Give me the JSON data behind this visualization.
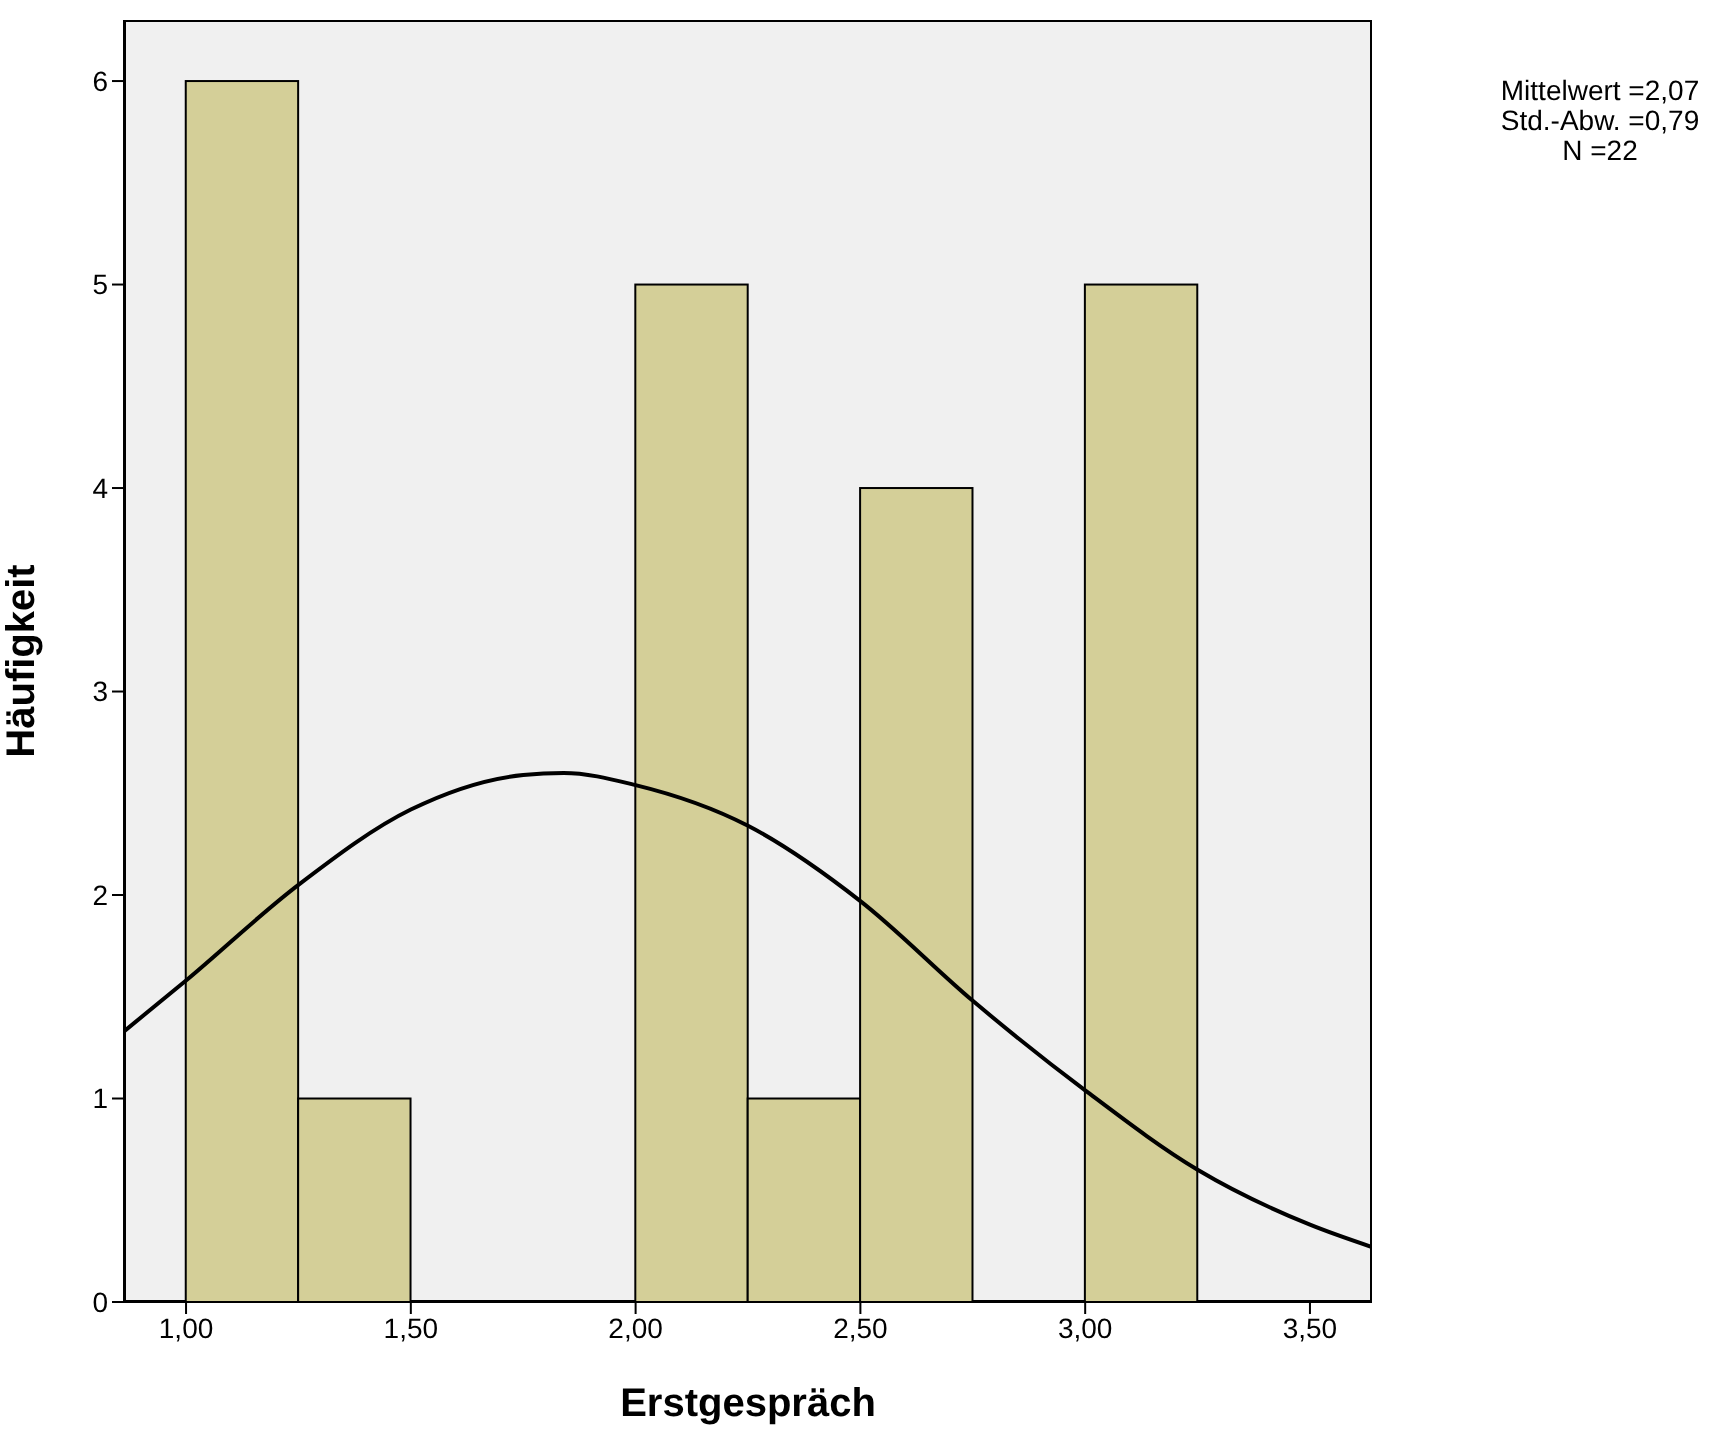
{
  "chart_data": {
    "type": "histogram",
    "xlabel": "Erstgespräch",
    "ylabel": "Häufigkeit",
    "bins": [
      1,
      1.25,
      1.5,
      1.75,
      2,
      2.25,
      2.5,
      2.75,
      3,
      3.25
    ],
    "values": [
      6,
      1,
      0,
      0,
      5,
      1,
      4,
      0,
      5
    ],
    "color": "#d4cf98",
    "series": [
      {
        "type": "line",
        "color": "#000000",
        "x": [
          0.862,
          1,
          1.25,
          1.5,
          1.75,
          1.84,
          2,
          2.25,
          2.5,
          2.75,
          3,
          3.25,
          3.5,
          3.638
        ],
        "values": [
          1.33,
          1.58,
          2.05,
          2.42,
          2.59,
          2.6,
          2.54,
          2.34,
          1.97,
          1.48,
          1.04,
          0.65,
          0.38,
          0.27
        ]
      }
    ],
    "xlim": [
      0.862,
      3.638
    ],
    "xticks": [
      {
        "value": 1,
        "label": "1,00"
      },
      {
        "value": 1.5,
        "label": "1,50"
      },
      {
        "value": 2,
        "label": "2,00"
      },
      {
        "value": 2.5,
        "label": "2,50"
      },
      {
        "value": 3,
        "label": "3,00"
      },
      {
        "value": 3.5,
        "label": "3,50"
      }
    ],
    "ylim": [
      0,
      6.3
    ],
    "yticks": [
      0,
      1,
      2,
      3,
      4,
      5,
      6
    ],
    "grid": false,
    "marker": "none",
    "annotations": [
      "Mittelwert =2,07",
      "Std.-Abw. =0,79",
      "N =22"
    ]
  }
}
